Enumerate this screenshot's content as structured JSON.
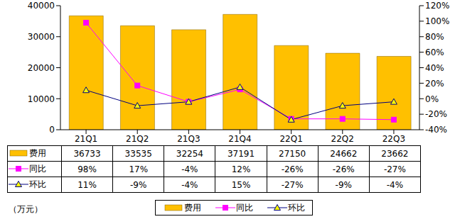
{
  "chart_data": {
    "type": "bar",
    "categories": [
      "21Q1",
      "21Q2",
      "21Q3",
      "21Q4",
      "22Q1",
      "22Q2",
      "22Q3"
    ],
    "series": [
      {
        "name": "费用",
        "type": "bar",
        "color": "#FFC000",
        "values": [
          36733,
          33535,
          32254,
          37191,
          27150,
          24662,
          23662
        ]
      },
      {
        "name": "同比",
        "type": "line",
        "color": "#FF00FF",
        "marker": "square",
        "axis": "y2",
        "values": [
          98,
          17,
          -4,
          12,
          -26,
          -26,
          -27
        ],
        "value_labels": [
          "98%",
          "17%",
          "-4%",
          "12%",
          "-26%",
          "-26%",
          "-27%"
        ]
      },
      {
        "name": "环比",
        "type": "line",
        "color": "#000080",
        "marker": "triangle",
        "axis": "y2",
        "values": [
          11,
          -9,
          -4,
          15,
          -27,
          -9,
          -4
        ],
        "value_labels": [
          "11%",
          "-9%",
          "-4%",
          "15%",
          "-27%",
          "-9%",
          "-4%"
        ]
      }
    ],
    "ylim": [
      0,
      40000
    ],
    "yticks": [
      0,
      10000,
      20000,
      30000,
      40000
    ],
    "y2lim": [
      -40,
      120
    ],
    "y2ticks": [
      {
        "value": -40,
        "label": "-40%"
      },
      {
        "value": -20,
        "label": "-20%"
      },
      {
        "value": 0,
        "label": "0%"
      },
      {
        "value": 20,
        "label": "20%"
      },
      {
        "value": 40,
        "label": "40%"
      },
      {
        "value": 60,
        "label": "60%"
      },
      {
        "value": 80,
        "label": "80%"
      },
      {
        "value": 100,
        "label": "100%"
      },
      {
        "value": 120,
        "label": "120%"
      }
    ],
    "ylabel": "（万元）",
    "legend": "bottom",
    "grid": false
  }
}
